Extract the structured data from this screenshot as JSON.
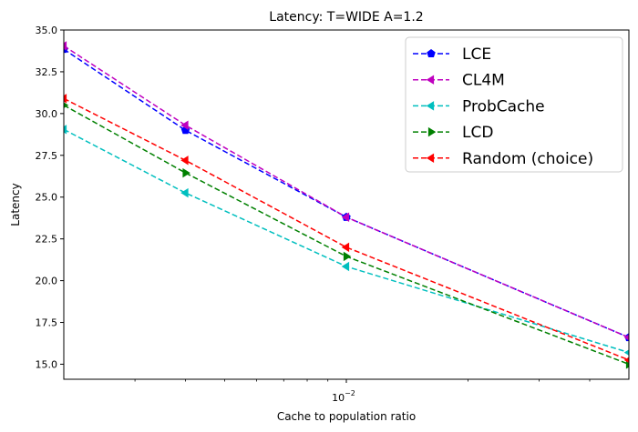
{
  "chart_data": {
    "type": "line",
    "title": "Latency: T=WIDE A=1.2",
    "xlabel": "Cache to population ratio",
    "ylabel": "Latency",
    "x_scale": "log",
    "x": [
      0.002,
      0.004,
      0.01,
      0.05
    ],
    "xlim": [
      0.002,
      0.05
    ],
    "ylim": [
      14.1,
      35.0
    ],
    "x_major_ticks": [
      {
        "value": 0.01,
        "label_base": "10",
        "label_exp": "−2"
      }
    ],
    "y_ticks": [
      15.0,
      17.5,
      20.0,
      22.5,
      25.0,
      27.5,
      30.0,
      32.5,
      35.0
    ],
    "y_tick_labels": [
      "15.0",
      "17.5",
      "20.0",
      "22.5",
      "25.0",
      "27.5",
      "30.0",
      "32.5",
      "35.0"
    ],
    "grid": false,
    "legend_position": "top-right",
    "series": [
      {
        "name": "LCE",
        "color": "#0000ff",
        "marker": "pentagon",
        "values": [
          33.85,
          29.0,
          23.8,
          16.6
        ]
      },
      {
        "name": "CL4M",
        "color": "#bf00bf",
        "marker": "triangle-left",
        "values": [
          34.05,
          29.3,
          23.8,
          16.6
        ]
      },
      {
        "name": "ProbCache",
        "color": "#00bfbf",
        "marker": "triangle-left",
        "values": [
          29.05,
          25.25,
          20.85,
          15.7
        ]
      },
      {
        "name": "LCD",
        "color": "#008000",
        "marker": "triangle-right",
        "values": [
          30.5,
          26.45,
          21.45,
          15.0
        ]
      },
      {
        "name": "Random (choice)",
        "color": "#ff0000",
        "marker": "triangle-left",
        "values": [
          30.9,
          27.2,
          22.0,
          15.25
        ]
      }
    ]
  }
}
